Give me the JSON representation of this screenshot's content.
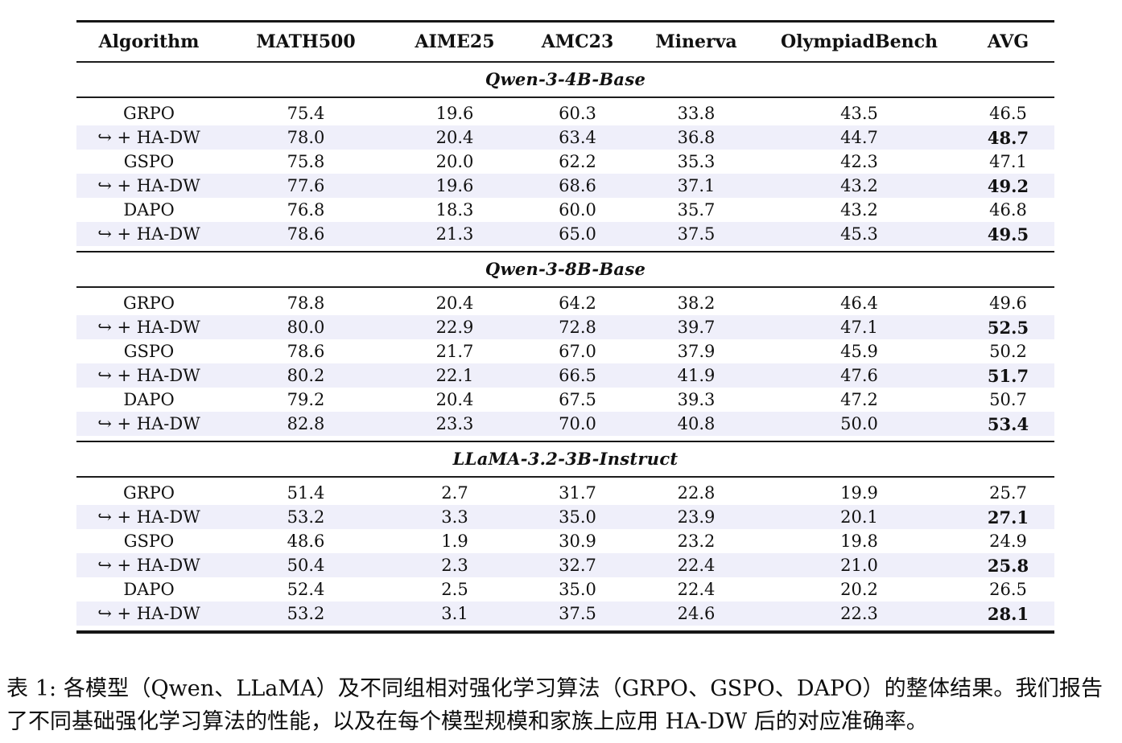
{
  "colors": {
    "highlight_row": "#EFEFFA",
    "rule": "#161616",
    "text": "#111111"
  },
  "table": {
    "columns": [
      "Algorithm",
      "MATH500",
      "AIME25",
      "AMC23",
      "Minerva",
      "OlympiadBench",
      "AVG"
    ],
    "sections": [
      {
        "title": "Qwen-3-4B-Base",
        "rows": [
          {
            "label": "GRPO",
            "highlight": false,
            "values": [
              "75.4",
              "19.6",
              "60.3",
              "33.8",
              "43.5"
            ],
            "avg": "46.5",
            "avg_bold": false
          },
          {
            "label": "↪ + HA-DW",
            "highlight": true,
            "values": [
              "78.0",
              "20.4",
              "63.4",
              "36.8",
              "44.7"
            ],
            "avg": "48.7",
            "avg_bold": true
          },
          {
            "label": "GSPO",
            "highlight": false,
            "values": [
              "75.8",
              "20.0",
              "62.2",
              "35.3",
              "42.3"
            ],
            "avg": "47.1",
            "avg_bold": false
          },
          {
            "label": "↪ + HA-DW",
            "highlight": true,
            "values": [
              "77.6",
              "19.6",
              "68.6",
              "37.1",
              "43.2"
            ],
            "avg": "49.2",
            "avg_bold": true
          },
          {
            "label": "DAPO",
            "highlight": false,
            "values": [
              "76.8",
              "18.3",
              "60.0",
              "35.7",
              "43.2"
            ],
            "avg": "46.8",
            "avg_bold": false
          },
          {
            "label": "↪ + HA-DW",
            "highlight": true,
            "values": [
              "78.6",
              "21.3",
              "65.0",
              "37.5",
              "45.3"
            ],
            "avg": "49.5",
            "avg_bold": true
          }
        ]
      },
      {
        "title": "Qwen-3-8B-Base",
        "rows": [
          {
            "label": "GRPO",
            "highlight": false,
            "values": [
              "78.8",
              "20.4",
              "64.2",
              "38.2",
              "46.4"
            ],
            "avg": "49.6",
            "avg_bold": false
          },
          {
            "label": "↪ + HA-DW",
            "highlight": true,
            "values": [
              "80.0",
              "22.9",
              "72.8",
              "39.7",
              "47.1"
            ],
            "avg": "52.5",
            "avg_bold": true
          },
          {
            "label": "GSPO",
            "highlight": false,
            "values": [
              "78.6",
              "21.7",
              "67.0",
              "37.9",
              "45.9"
            ],
            "avg": "50.2",
            "avg_bold": false
          },
          {
            "label": "↪ + HA-DW",
            "highlight": true,
            "values": [
              "80.2",
              "22.1",
              "66.5",
              "41.9",
              "47.6"
            ],
            "avg": "51.7",
            "avg_bold": true
          },
          {
            "label": "DAPO",
            "highlight": false,
            "values": [
              "79.2",
              "20.4",
              "67.5",
              "39.3",
              "47.2"
            ],
            "avg": "50.7",
            "avg_bold": false
          },
          {
            "label": "↪ + HA-DW",
            "highlight": true,
            "values": [
              "82.8",
              "23.3",
              "70.0",
              "40.8",
              "50.0"
            ],
            "avg": "53.4",
            "avg_bold": true
          }
        ]
      },
      {
        "title": "LLaMA-3.2-3B-Instruct",
        "rows": [
          {
            "label": "GRPO",
            "highlight": false,
            "values": [
              "51.4",
              "2.7",
              "31.7",
              "22.8",
              "19.9"
            ],
            "avg": "25.7",
            "avg_bold": false
          },
          {
            "label": "↪ + HA-DW",
            "highlight": true,
            "values": [
              "53.2",
              "3.3",
              "35.0",
              "23.9",
              "20.1"
            ],
            "avg": "27.1",
            "avg_bold": true
          },
          {
            "label": "GSPO",
            "highlight": false,
            "values": [
              "48.6",
              "1.9",
              "30.9",
              "23.2",
              "19.8"
            ],
            "avg": "24.9",
            "avg_bold": false
          },
          {
            "label": "↪ + HA-DW",
            "highlight": true,
            "values": [
              "50.4",
              "2.3",
              "32.7",
              "22.4",
              "21.0"
            ],
            "avg": "25.8",
            "avg_bold": true
          },
          {
            "label": "DAPO",
            "highlight": false,
            "values": [
              "52.4",
              "2.5",
              "35.0",
              "22.4",
              "20.2"
            ],
            "avg": "26.5",
            "avg_bold": false
          },
          {
            "label": "↪ + HA-DW",
            "highlight": true,
            "values": [
              "53.2",
              "3.1",
              "37.5",
              "24.6",
              "22.3"
            ],
            "avg": "28.1",
            "avg_bold": true
          }
        ]
      }
    ]
  },
  "caption": "表 1: 各模型（Qwen、LLaMA）及不同组相对强化学习算法（GRPO、GSPO、DAPO）的整体结果。我们报告了不同基础强化学习算法的性能，以及在每个模型规模和家族上应用 HA-DW 后的对应准确率。"
}
